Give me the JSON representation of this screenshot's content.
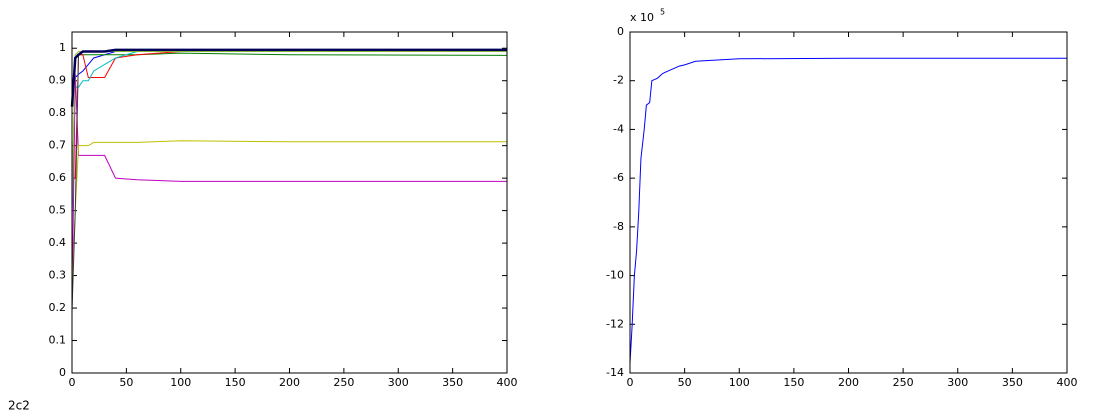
{
  "figure_label": "2c2",
  "chart_data": [
    {
      "type": "line",
      "xlim": [
        0,
        400
      ],
      "ylim": [
        0,
        1.05
      ],
      "xticks": [
        0,
        50,
        100,
        150,
        200,
        250,
        300,
        350,
        400
      ],
      "yticks": [
        0,
        0.1,
        0.2,
        0.3,
        0.4,
        0.5,
        0.6,
        0.7,
        0.8,
        0.9,
        1
      ],
      "x": [
        0,
        3,
        6,
        10,
        15,
        20,
        30,
        40,
        60,
        100,
        200,
        400
      ],
      "series": [
        {
          "color": "#0000ff",
          "values": [
            0.9,
            0.91,
            0.92,
            0.93,
            0.95,
            0.97,
            0.98,
            0.99,
            0.995,
            0.995,
            0.995,
            0.995
          ]
        },
        {
          "color": "#008000",
          "values": [
            0.5,
            0.97,
            0.98,
            0.98,
            0.98,
            0.98,
            0.98,
            0.98,
            0.98,
            0.985,
            0.98,
            0.978
          ]
        },
        {
          "color": "#ff0000",
          "values": [
            0.6,
            0.6,
            0.98,
            0.98,
            0.91,
            0.91,
            0.91,
            0.97,
            0.98,
            0.99,
            0.99,
            0.99
          ]
        },
        {
          "color": "#00bfbf",
          "values": [
            0.47,
            0.88,
            0.88,
            0.9,
            0.9,
            0.93,
            0.95,
            0.97,
            0.99,
            0.99,
            0.99,
            0.99
          ]
        },
        {
          "color": "#bf00bf",
          "values": [
            0.2,
            0.92,
            0.67,
            0.67,
            0.67,
            0.67,
            0.67,
            0.6,
            0.595,
            0.59,
            0.59,
            0.59
          ]
        },
        {
          "color": "#bfbf00",
          "values": [
            0.23,
            0.5,
            0.7,
            0.7,
            0.7,
            0.71,
            0.71,
            0.71,
            0.71,
            0.715,
            0.712,
            0.712
          ]
        },
        {
          "color": "#404040",
          "values": [
            0.19,
            0.5,
            0.98,
            0.99,
            0.99,
            0.99,
            0.99,
            0.99,
            0.99,
            0.99,
            0.99,
            0.99
          ]
        },
        {
          "color": "#9acd32",
          "values": [
            0.52,
            0.98,
            0.99,
            0.99,
            0.99,
            0.99,
            0.99,
            0.99,
            0.99,
            0.99,
            0.99,
            0.99
          ]
        },
        {
          "color": "#00005a",
          "values": [
            0.82,
            0.97,
            0.98,
            0.99,
            0.99,
            0.99,
            0.99,
            0.995,
            0.995,
            0.995,
            0.995,
            0.995
          ]
        }
      ]
    },
    {
      "type": "line",
      "xlim": [
        0,
        400
      ],
      "ylim": [
        -14,
        0
      ],
      "xticks": [
        0,
        50,
        100,
        150,
        200,
        250,
        300,
        350,
        400
      ],
      "yticks": [
        -14,
        -12,
        -10,
        -8,
        -6,
        -4,
        -2,
        0
      ],
      "y_scale_label": "x 10",
      "y_scale_exponent": "5",
      "x": [
        0,
        2,
        4,
        6,
        8,
        10,
        13,
        15,
        18,
        20,
        25,
        30,
        35,
        40,
        45,
        50,
        60,
        80,
        100,
        200,
        400
      ],
      "series": [
        {
          "color": "#0000ff",
          "values": [
            -13.6,
            -12,
            -10,
            -9,
            -7.4,
            -5.2,
            -4,
            -3,
            -2.9,
            -2,
            -1.9,
            -1.7,
            -1.6,
            -1.5,
            -1.4,
            -1.35,
            -1.2,
            -1.15,
            -1.1,
            -1.08,
            -1.08
          ]
        }
      ]
    }
  ]
}
